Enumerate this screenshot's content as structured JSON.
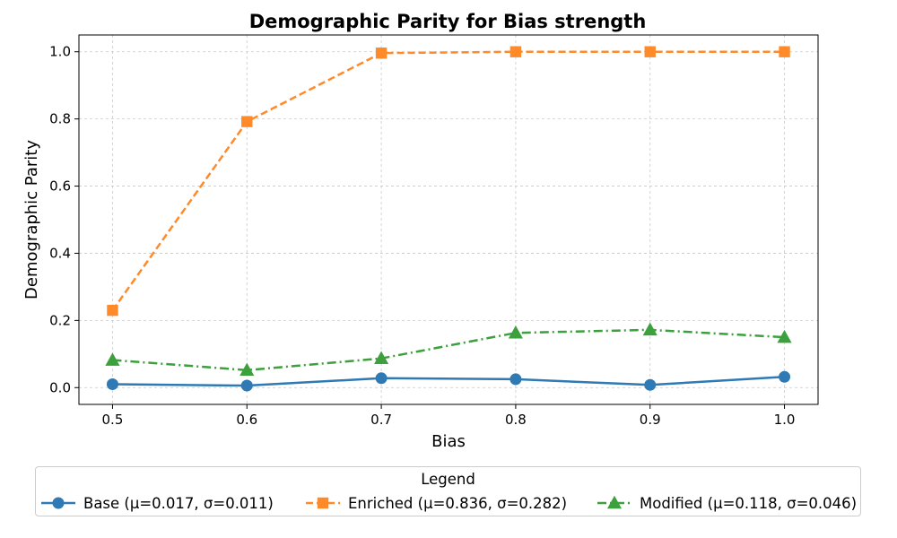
{
  "chart_data": {
    "type": "line",
    "title": "Demographic Parity for Bias strength",
    "xlabel": "Bias",
    "ylabel": "Demographic Parity",
    "x": [
      0.5,
      0.6,
      0.7,
      0.8,
      0.9,
      1.0
    ],
    "x_ticks": [
      "0.5",
      "0.6",
      "0.7",
      "0.8",
      "0.9",
      "1.0"
    ],
    "y_ticks": [
      "0.0",
      "0.2",
      "0.4",
      "0.6",
      "0.8",
      "1.0"
    ],
    "xlim": [
      0.475,
      1.025
    ],
    "ylim": [
      -0.05,
      1.05
    ],
    "grid": true,
    "legend_position": "bottom-outside",
    "legend_title": "Legend",
    "series": [
      {
        "name": "Base (μ=0.017, σ=0.011)",
        "values": [
          0.01,
          0.006,
          0.028,
          0.025,
          0.008,
          0.032
        ],
        "color": "#2f7ab4",
        "marker": "circle",
        "dash": "solid"
      },
      {
        "name": "Enriched (μ=0.836, σ=0.282)",
        "values": [
          0.23,
          0.792,
          0.996,
          1.0,
          1.0,
          1.0
        ],
        "color": "#ff8a2a",
        "marker": "square",
        "dash": "dashed"
      },
      {
        "name": "Modified (μ=0.118, σ=0.046)",
        "values": [
          0.082,
          0.052,
          0.087,
          0.163,
          0.172,
          0.15
        ],
        "color": "#3ca03c",
        "marker": "triangle",
        "dash": "dashdot"
      }
    ]
  }
}
